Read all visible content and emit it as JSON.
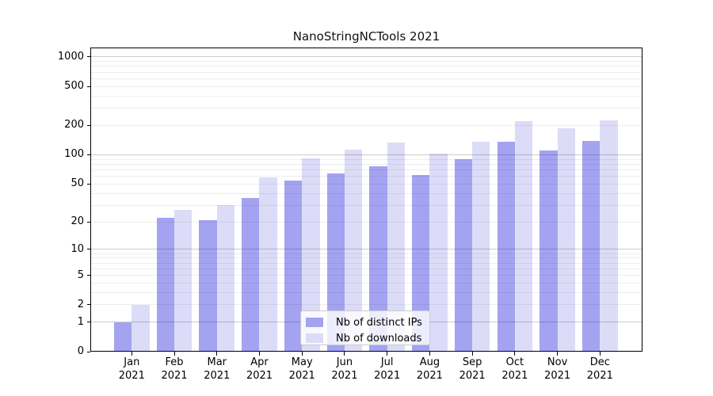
{
  "title": "NanoStringNCTools 2021",
  "chart_data": {
    "type": "bar",
    "title": "NanoStringNCTools 2021",
    "categories": [
      "Jan 2021",
      "Feb 2021",
      "Mar 2021",
      "Apr 2021",
      "May 2021",
      "Jun 2021",
      "Jul 2021",
      "Aug 2021",
      "Sep 2021",
      "Oct 2021",
      "Nov 2021",
      "Dec 2021"
    ],
    "series": [
      {
        "name": "Nb of distinct IPs",
        "color": "#a3a3f2",
        "values": [
          1,
          22,
          21,
          36,
          54,
          64,
          76,
          62,
          90,
          135,
          110,
          139
        ]
      },
      {
        "name": "Nb of downloads",
        "color": "#dcdcf8",
        "values": [
          2,
          27,
          30,
          58,
          91,
          112,
          134,
          103,
          136,
          222,
          188,
          226
        ]
      }
    ],
    "xlabel": "",
    "ylabel": "",
    "yscale": "log1p",
    "y_ticks": [
      0,
      1,
      2,
      5,
      10,
      20,
      50,
      100,
      200,
      500,
      1000
    ],
    "ylim": [
      0,
      1250
    ],
    "grid": true,
    "grid_minor": true,
    "legend_position": "inside lower center",
    "background": "#ffffff",
    "frame_color": "#000000",
    "major_grid_color": "#cccccc",
    "minor_grid_color": "#eeeeee"
  }
}
